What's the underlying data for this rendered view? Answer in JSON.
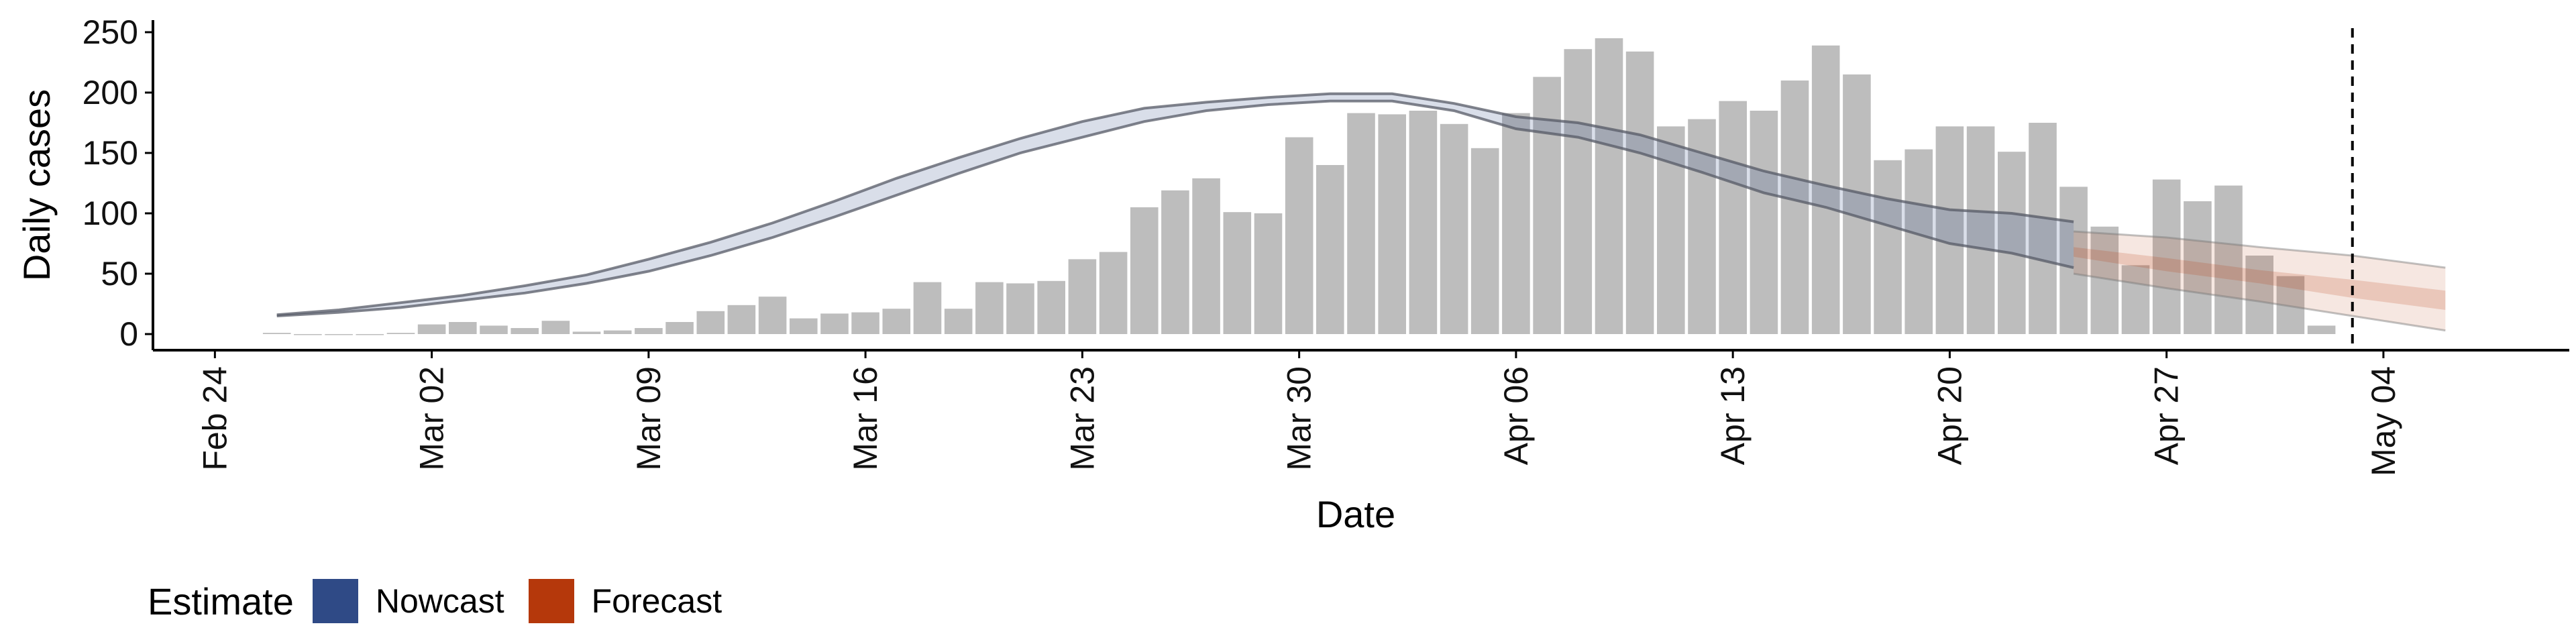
{
  "chart_data": {
    "type": "bar",
    "title": "",
    "xlabel": "Date",
    "ylabel": "Daily cases",
    "ylim": [
      0,
      260
    ],
    "y_ticks": [
      0,
      50,
      100,
      150,
      200,
      250
    ],
    "x_ticks": [
      {
        "date": "2020-02-24",
        "label": "Feb 24"
      },
      {
        "date": "2020-03-02",
        "label": "Mar 02"
      },
      {
        "date": "2020-03-09",
        "label": "Mar 09"
      },
      {
        "date": "2020-03-16",
        "label": "Mar 16"
      },
      {
        "date": "2020-03-23",
        "label": "Mar 23"
      },
      {
        "date": "2020-03-30",
        "label": "Mar 30"
      },
      {
        "date": "2020-04-06",
        "label": "Apr 06"
      },
      {
        "date": "2020-04-13",
        "label": "Apr 13"
      },
      {
        "date": "2020-04-20",
        "label": "Apr 20"
      },
      {
        "date": "2020-04-27",
        "label": "Apr 27"
      },
      {
        "date": "2020-05-04",
        "label": "May 04"
      }
    ],
    "xlim": [
      "2020-02-22",
      "2020-05-10"
    ],
    "grid": false,
    "legend_position": "bottom-left",
    "bars": {
      "dates": [
        "2020-02-26",
        "2020-02-27",
        "2020-02-28",
        "2020-02-29",
        "2020-03-01",
        "2020-03-02",
        "2020-03-03",
        "2020-03-04",
        "2020-03-05",
        "2020-03-06",
        "2020-03-07",
        "2020-03-08",
        "2020-03-09",
        "2020-03-10",
        "2020-03-11",
        "2020-03-12",
        "2020-03-13",
        "2020-03-14",
        "2020-03-15",
        "2020-03-16",
        "2020-03-17",
        "2020-03-18",
        "2020-03-19",
        "2020-03-20",
        "2020-03-21",
        "2020-03-22",
        "2020-03-23",
        "2020-03-24",
        "2020-03-25",
        "2020-03-26",
        "2020-03-27",
        "2020-03-28",
        "2020-03-29",
        "2020-03-30",
        "2020-03-31",
        "2020-04-01",
        "2020-04-02",
        "2020-04-03",
        "2020-04-04",
        "2020-04-05",
        "2020-04-06",
        "2020-04-07",
        "2020-04-08",
        "2020-04-09",
        "2020-04-10",
        "2020-04-11",
        "2020-04-12",
        "2020-04-13",
        "2020-04-14",
        "2020-04-15",
        "2020-04-16",
        "2020-04-17",
        "2020-04-18",
        "2020-04-19",
        "2020-04-20",
        "2020-04-21",
        "2020-04-22",
        "2020-04-23",
        "2020-04-24",
        "2020-04-25",
        "2020-04-26",
        "2020-04-27",
        "2020-04-28",
        "2020-04-29",
        "2020-04-30",
        "2020-05-01",
        "2020-05-02"
      ],
      "values": [
        1,
        0,
        0,
        0,
        1,
        8,
        10,
        7,
        5,
        11,
        2,
        3,
        5,
        10,
        19,
        24,
        31,
        13,
        17,
        18,
        21,
        43,
        21,
        43,
        42,
        44,
        62,
        68,
        105,
        119,
        129,
        101,
        100,
        163,
        140,
        183,
        182,
        185,
        174,
        154,
        183,
        213,
        236,
        245,
        234,
        172,
        178,
        193,
        185,
        210,
        239,
        215,
        144,
        153,
        172,
        172,
        151,
        175,
        122,
        89,
        57,
        128,
        110,
        123,
        65,
        48,
        7
      ],
      "color": "#bdbdbd"
    },
    "series": [
      {
        "estimate": "Nowcast",
        "color": "#2f4a86",
        "dates": [
          "2020-02-26",
          "2020-02-28",
          "2020-03-01",
          "2020-03-03",
          "2020-03-05",
          "2020-03-07",
          "2020-03-09",
          "2020-03-11",
          "2020-03-13",
          "2020-03-15",
          "2020-03-17",
          "2020-03-19",
          "2020-03-21",
          "2020-03-23",
          "2020-03-25",
          "2020-03-27",
          "2020-03-29",
          "2020-03-31",
          "2020-04-02",
          "2020-04-04",
          "2020-04-06",
          "2020-04-08",
          "2020-04-10",
          "2020-04-12",
          "2020-04-14",
          "2020-04-16",
          "2020-04-18",
          "2020-04-20",
          "2020-04-22",
          "2020-04-24"
        ],
        "lower": [
          15,
          18,
          22,
          28,
          34,
          42,
          52,
          65,
          80,
          97,
          115,
          133,
          150,
          163,
          176,
          185,
          190,
          193,
          193,
          185,
          170,
          163,
          150,
          134,
          117,
          105,
          90,
          75,
          67,
          55
        ],
        "median": [
          15.5,
          19,
          24,
          30,
          37,
          45,
          57,
          71,
          86,
          103,
          122,
          140,
          156,
          170,
          182,
          189,
          193,
          196,
          195,
          188,
          175,
          168,
          157,
          142,
          126,
          114,
          100,
          88,
          83,
          75
        ],
        "upper": [
          16,
          20,
          26,
          32,
          40,
          49,
          62,
          76,
          92,
          110,
          129,
          146,
          162,
          176,
          187,
          192,
          196,
          199,
          199,
          191,
          180,
          175,
          165,
          150,
          135,
          123,
          112,
          103,
          100,
          93
        ]
      },
      {
        "estimate": "Forecast",
        "color": "#b5380b",
        "dates": [
          "2020-04-24",
          "2020-04-27",
          "2020-04-30",
          "2020-05-03",
          "2020-05-06"
        ],
        "lower": [
          50,
          38,
          27,
          15,
          3
        ],
        "lower_inner": [
          64,
          52,
          42,
          30,
          20
        ],
        "median": [
          68,
          58,
          48,
          38,
          28
        ],
        "upper_inner": [
          72,
          63,
          53,
          45,
          36
        ],
        "upper": [
          85,
          80,
          72,
          65,
          55
        ]
      }
    ],
    "vline": {
      "date": "2020-05-03",
      "style": "dashed"
    },
    "legend": {
      "title": "Estimate",
      "entries": [
        "Nowcast",
        "Forecast"
      ]
    }
  }
}
